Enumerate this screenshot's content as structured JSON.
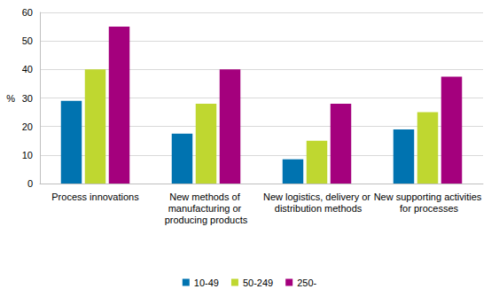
{
  "chart_data": {
    "type": "bar",
    "categories": [
      "Process innovations",
      "New methods of manufacturing or producing products",
      "New logistics, delivery or distribution methods",
      "New supporting activities for processes"
    ],
    "series": [
      {
        "name": "10-49",
        "color": "#0073b0",
        "values": [
          29,
          17.5,
          8.5,
          19
        ]
      },
      {
        "name": "50-249",
        "color": "#bfd730",
        "values": [
          40,
          28,
          15,
          25
        ]
      },
      {
        "name": "250-",
        "color": "#a4007d",
        "values": [
          55,
          40,
          28,
          37.5
        ]
      }
    ],
    "y_label": "%",
    "ylim": [
      0,
      60
    ],
    "yticks": [
      0,
      10,
      20,
      30,
      40,
      50,
      60
    ],
    "grid": true,
    "legend": "bottom"
  }
}
